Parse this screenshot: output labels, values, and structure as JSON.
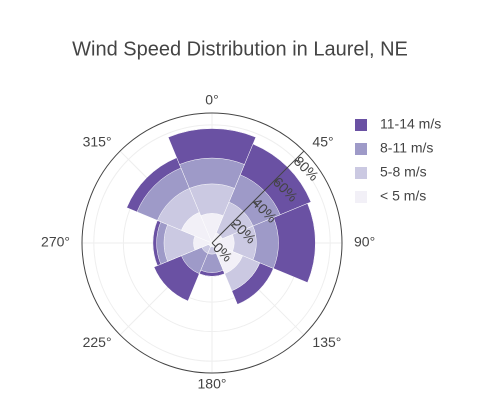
{
  "chart_data": {
    "type": "barpolar",
    "title": "Wind Speed Distribution in Laurel, NE",
    "theta": [
      0,
      45,
      90,
      135,
      180,
      225,
      270,
      315
    ],
    "angular_ticks": [
      {
        "value": 0,
        "label": "0°"
      },
      {
        "value": 45,
        "label": "45°"
      },
      {
        "value": 90,
        "label": "90°"
      },
      {
        "value": 135,
        "label": "135°"
      },
      {
        "value": 180,
        "label": "180°"
      },
      {
        "value": 225,
        "label": "225°"
      },
      {
        "value": 270,
        "label": "270°"
      },
      {
        "value": 315,
        "label": "315°"
      }
    ],
    "series": [
      {
        "name": "11-14 m/s",
        "color": "#6a51a3",
        "values": [
          77.5,
          72.5,
          70.0,
          45.0,
          22.5,
          42.5,
          40.0,
          62.5
        ]
      },
      {
        "name": "8-11 m/s",
        "color": "#9e9ac8",
        "values": [
          57.5,
          50.0,
          45.0,
          35.0,
          20.0,
          22.5,
          37.5,
          55.0
        ]
      },
      {
        "name": "5-8 m/s",
        "color": "#cbc9e2",
        "values": [
          40.0,
          30.0,
          30.0,
          35.0,
          7.5,
          7.5,
          32.5,
          40.0
        ]
      },
      {
        "name": "< 5 m/s",
        "color": "#f2f0f7",
        "values": [
          20.0,
          7.5,
          15.0,
          22.5,
          2.5,
          2.5,
          12.5,
          22.5
        ]
      }
    ],
    "ylim": [
      0,
      88
    ],
    "yticks": [
      {
        "value": 0,
        "label": "0%"
      },
      {
        "value": 20,
        "label": "20%"
      },
      {
        "value": 40,
        "label": "40%"
      },
      {
        "value": 60,
        "label": "60%"
      },
      {
        "value": 80,
        "label": "80%"
      }
    ],
    "grid": true,
    "legend": "right"
  }
}
